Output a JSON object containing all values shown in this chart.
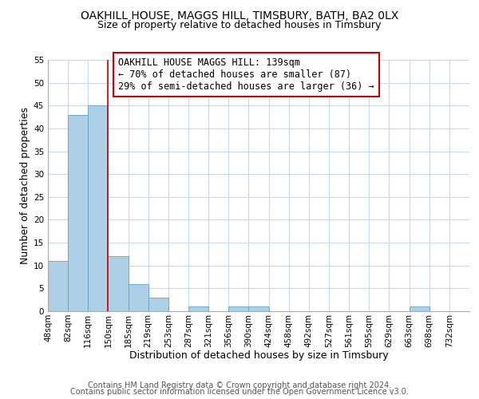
{
  "title": "OAKHILL HOUSE, MAGGS HILL, TIMSBURY, BATH, BA2 0LX",
  "subtitle": "Size of property relative to detached houses in Timsbury",
  "xlabel": "Distribution of detached houses by size in Timsbury",
  "ylabel": "Number of detached properties",
  "bin_labels": [
    "48sqm",
    "82sqm",
    "116sqm",
    "150sqm",
    "185sqm",
    "219sqm",
    "253sqm",
    "287sqm",
    "321sqm",
    "356sqm",
    "390sqm",
    "424sqm",
    "458sqm",
    "492sqm",
    "527sqm",
    "561sqm",
    "595sqm",
    "629sqm",
    "663sqm",
    "698sqm",
    "732sqm"
  ],
  "bar_heights": [
    11,
    43,
    45,
    12,
    6,
    3,
    0,
    1,
    0,
    1,
    1,
    0,
    0,
    0,
    0,
    0,
    0,
    0,
    1,
    0,
    0
  ],
  "bar_color": "#aed0e6",
  "bar_edge_color": "#5ba3cc",
  "vline_x": 3,
  "vline_color": "#cc0000",
  "ylim": [
    0,
    55
  ],
  "yticks": [
    0,
    5,
    10,
    15,
    20,
    25,
    30,
    35,
    40,
    45,
    50,
    55
  ],
  "annotation_line1": "OAKHILL HOUSE MAGGS HILL: 139sqm",
  "annotation_line2": "← 70% of detached houses are smaller (87)",
  "annotation_line3": "29% of semi-detached houses are larger (36) →",
  "annotation_box_color": "#ffffff",
  "annotation_box_edge": "#cc0000",
  "footer1": "Contains HM Land Registry data © Crown copyright and database right 2024.",
  "footer2": "Contains public sector information licensed under the Open Government Licence v3.0.",
  "background_color": "#ffffff",
  "grid_color": "#c8d8e8",
  "title_fontsize": 10,
  "subtitle_fontsize": 9,
  "axis_label_fontsize": 9,
  "tick_fontsize": 7.5,
  "annotation_fontsize": 8.5,
  "footer_fontsize": 7
}
